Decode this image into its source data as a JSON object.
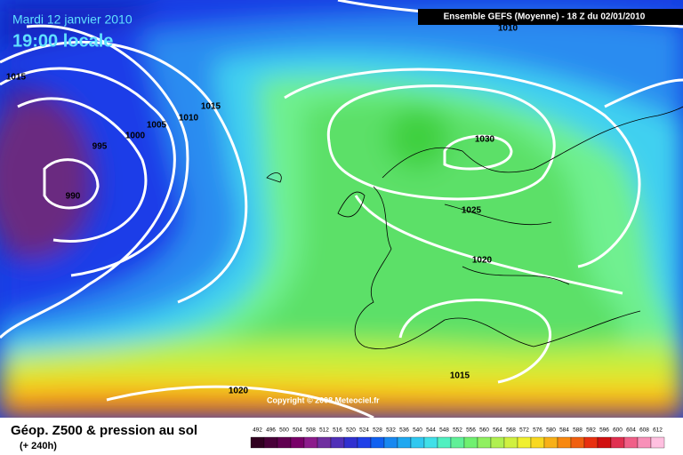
{
  "header": {
    "date": "Mardi 12 janvier 2010",
    "time": "19:00 locale",
    "run": "Ensemble GEFS (Moyenne)  - 18 Z du 02/01/2010"
  },
  "map": {
    "isobar_labels": [
      "1015",
      "1010",
      "1015",
      "1010",
      "1005",
      "1000",
      "995",
      "990",
      "1030",
      "1025",
      "1020",
      "1015",
      "1020"
    ],
    "copyright": "Copyright © 2008 Meteociel.fr"
  },
  "footer": {
    "title": "Géop. Z500 & pression au sol",
    "lead": "(+ 240h)"
  },
  "legend": {
    "labels": [
      492,
      496,
      500,
      504,
      508,
      512,
      516,
      520,
      524,
      528,
      532,
      536,
      540,
      544,
      548,
      552,
      556,
      560,
      564,
      568,
      572,
      576,
      580,
      584,
      588,
      592,
      596,
      600,
      604,
      608,
      612
    ]
  }
}
